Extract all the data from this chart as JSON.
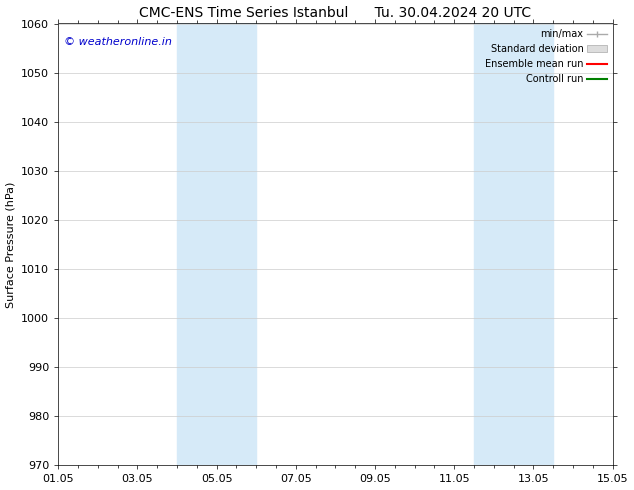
{
  "title": "CMC-ENS Time Series Istanbul      Tu. 30.04.2024 20 UTC",
  "ylabel": "Surface Pressure (hPa)",
  "ylim": [
    970,
    1060
  ],
  "yticks": [
    970,
    980,
    990,
    1000,
    1010,
    1020,
    1030,
    1040,
    1050,
    1060
  ],
  "xtick_labels": [
    "01.05",
    "03.05",
    "05.05",
    "07.05",
    "09.05",
    "11.05",
    "13.05",
    "15.05"
  ],
  "xtick_positions": [
    0,
    2,
    4,
    6,
    8,
    10,
    12,
    14
  ],
  "xlim": [
    0,
    14
  ],
  "shaded_regions": [
    {
      "start": 3.0,
      "end": 5.0
    },
    {
      "start": 10.5,
      "end": 12.5
    }
  ],
  "shade_color": "#d6eaf8",
  "background_color": "#ffffff",
  "watermark_text": "© weatheronline.in",
  "watermark_color": "#0000cc",
  "grid_color": "#cccccc",
  "title_fontsize": 10,
  "axis_fontsize": 8,
  "tick_fontsize": 8,
  "legend_labels": [
    "min/max",
    "Standard deviation",
    "Ensemble mean run",
    "Controll run"
  ],
  "legend_colors": [
    "#aaaaaa",
    "#cccccc",
    "#ff0000",
    "#008000"
  ]
}
